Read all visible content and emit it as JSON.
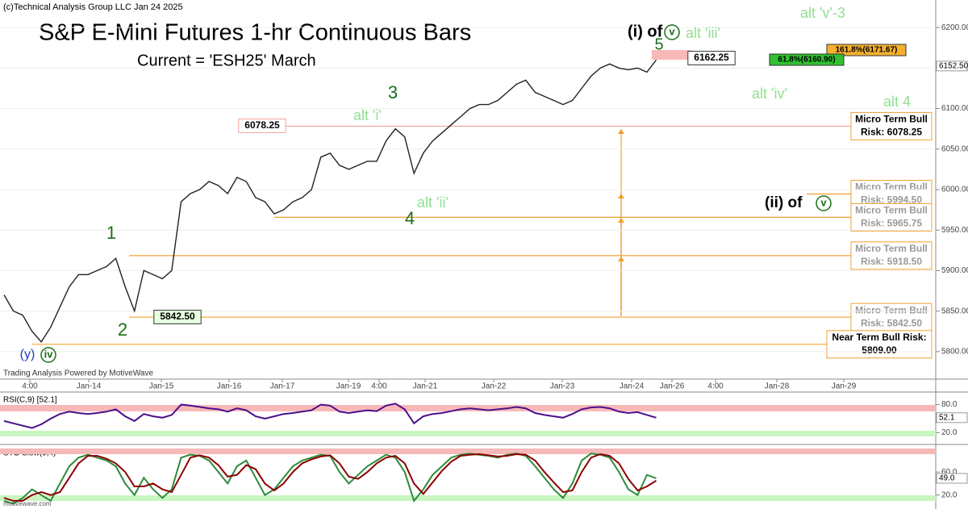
{
  "chart_data": [
    {
      "type": "line",
      "title": "S&P E-Mini Futures 1-hr Continuous Bars",
      "subtitle": "Current = 'ESH25' March",
      "series": [
        {
          "name": "ESH25",
          "color": "#222222",
          "values": [
            5870,
            5850,
            5845,
            5825,
            5812,
            5830,
            5855,
            5880,
            5895,
            5895,
            5900,
            5905,
            5915,
            5880,
            5850,
            5900,
            5895,
            5890,
            5900,
            5985,
            5995,
            6000,
            6010,
            6005,
            5995,
            6015,
            6010,
            5990,
            5985,
            5970,
            5975,
            5985,
            5990,
            6000,
            6040,
            6045,
            6030,
            6025,
            6030,
            6035,
            6035,
            6060,
            6075,
            6065,
            6020,
            6045,
            6060,
            6070,
            6080,
            6090,
            6100,
            6105,
            6105,
            6110,
            6120,
            6130,
            6135,
            6120,
            6115,
            6110,
            6105,
            6110,
            6125,
            6140,
            6150,
            6155,
            6150,
            6148,
            6150,
            6145,
            6160
          ]
        }
      ],
      "ylim": [
        5766,
        6234
      ],
      "yticks": [
        {
          "value": 5800,
          "label": "5800.00"
        },
        {
          "value": 5850,
          "label": "5850.00"
        },
        {
          "value": 5900,
          "label": "5900.00"
        },
        {
          "value": 5950,
          "label": "5950.00"
        },
        {
          "value": 6000,
          "label": "6000.00"
        },
        {
          "value": 6050,
          "label": "6050.00"
        },
        {
          "value": 6100,
          "label": "6100.00"
        },
        {
          "value": 6150,
          "label": "6150.00"
        },
        {
          "value": 6200,
          "label": "6200.00"
        }
      ],
      "readout": {
        "value": 6152.5,
        "label": "6152.50"
      },
      "xlabels": [
        "4:00",
        "Jan-14",
        "Jan-15",
        "Jan-16",
        "Jan-17",
        "Jan-19",
        "4:00",
        "Jan-21",
        "Jan-22",
        "Jan-23",
        "Jan-24",
        "Jan-26",
        "4:00",
        "Jan-28",
        "Jan-29"
      ],
      "levels": [
        {
          "value": 6078.25,
          "title": "Micro Term Bull",
          "label": "Risk: 6078.25"
        },
        {
          "value": 5994.5,
          "title": "Micro Term Bull",
          "label": "Risk: 5994.50"
        },
        {
          "value": 5965.75,
          "title": "Micro Term Bull",
          "label": "Risk: 5965.75"
        },
        {
          "value": 5918.5,
          "title": "Micro Term Bull",
          "label": "Risk: 5918.50"
        },
        {
          "value": 5842.5,
          "title": "Micro Term Bull",
          "label": "Risk: 5842.50"
        },
        {
          "value": 5809,
          "title": "Near Term Bull Risk:",
          "label": "5809.00"
        }
      ],
      "annotations": [
        "(c)Technical Analysis Group LLC Jan 24 2025",
        "1",
        "2",
        "3",
        "4",
        "5",
        "(i) of",
        "alt 'iii'",
        "alt 'v'-3",
        "alt 'iv'",
        "alt 4",
        "alt 'i'",
        "alt 'ii'",
        "(ii) of",
        "Trading Analysis Powered by MotiveWave",
        "6078.25",
        "5842.50",
        "161.8%(6171.67)",
        "61.8%(6160.90)",
        "6162.25",
        "(y)",
        "iv",
        "v",
        "v",
        "motivewave.com"
      ]
    },
    {
      "type": "line",
      "title": "RSI(C,9) [52.1]",
      "series": [
        {
          "name": "RSI",
          "color": "#4b0f8a",
          "values": [
            45,
            40,
            35,
            30,
            38,
            50,
            60,
            65,
            62,
            60,
            62,
            65,
            70,
            55,
            45,
            60,
            55,
            52,
            58,
            80,
            78,
            75,
            72,
            70,
            65,
            72,
            68,
            55,
            50,
            55,
            60,
            62,
            65,
            68,
            80,
            78,
            65,
            62,
            65,
            68,
            66,
            78,
            82,
            70,
            40,
            55,
            60,
            62,
            66,
            70,
            72,
            70,
            68,
            70,
            72,
            75,
            72,
            62,
            58,
            55,
            52,
            60,
            70,
            74,
            75,
            72,
            65,
            62,
            64,
            58,
            52.1
          ]
        }
      ],
      "ylim": [
        0,
        100
      ],
      "yticks": [
        {
          "value": 20,
          "label": "20.0"
        },
        {
          "value": 80,
          "label": "80.0"
        }
      ]
    },
    {
      "type": "line",
      "title": "STO Slow(9,4)",
      "series": [
        {
          "name": "%K",
          "color": "#2e8b3a",
          "values": [
            10,
            5,
            15,
            30,
            20,
            10,
            40,
            70,
            85,
            90,
            85,
            80,
            70,
            40,
            20,
            50,
            30,
            15,
            30,
            85,
            90,
            88,
            80,
            60,
            40,
            70,
            80,
            50,
            20,
            30,
            50,
            70,
            80,
            85,
            90,
            88,
            60,
            40,
            55,
            70,
            80,
            90,
            85,
            60,
            10,
            30,
            55,
            70,
            85,
            90,
            92,
            90,
            88,
            85,
            90,
            92,
            88,
            70,
            50,
            30,
            15,
            40,
            80,
            92,
            90,
            85,
            60,
            30,
            20,
            55,
            49
          ]
        },
        {
          "name": "%D",
          "color": "#8b0000",
          "values": [
            15,
            10,
            10,
            20,
            25,
            20,
            25,
            50,
            75,
            88,
            88,
            83,
            75,
            60,
            35,
            35,
            40,
            30,
            25,
            55,
            85,
            89,
            85,
            72,
            52,
            55,
            72,
            65,
            40,
            28,
            40,
            60,
            75,
            82,
            87,
            89,
            75,
            52,
            48,
            60,
            75,
            85,
            88,
            75,
            40,
            22,
            42,
            62,
            78,
            88,
            90,
            91,
            89,
            87,
            88,
            91,
            90,
            80,
            60,
            42,
            25,
            28,
            60,
            85,
            91,
            88,
            75,
            48,
            28,
            35,
            45
          ]
        }
      ],
      "ylim": [
        0,
        105
      ],
      "yticks": [
        {
          "value": 20,
          "label": "20.0"
        },
        {
          "value": 60,
          "label": "60.0"
        }
      ],
      "readout": {
        "value": 49,
        "label": "49.0"
      }
    }
  ]
}
